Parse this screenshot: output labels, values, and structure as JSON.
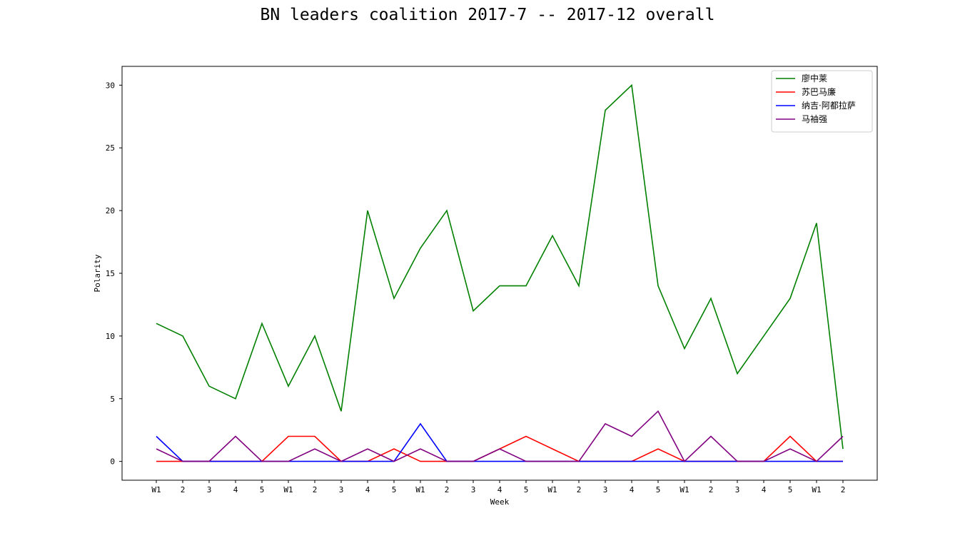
{
  "chart_data": {
    "type": "line",
    "title": "BN leaders coalition 2017-7 -- 2017-12 overall",
    "xlabel": "Week",
    "ylabel": "Polarity",
    "ylim": [
      -1.5,
      31.5
    ],
    "yticks": [
      0,
      5,
      10,
      15,
      20,
      25,
      30
    ],
    "grid": false,
    "legend_position": "top-right",
    "categories": [
      "W1",
      "2",
      "3",
      "4",
      "5",
      "W1",
      "2",
      "3",
      "4",
      "5",
      "W1",
      "2",
      "3",
      "4",
      "5",
      "W1",
      "2",
      "3",
      "4",
      "5",
      "W1",
      "2",
      "3",
      "4",
      "5",
      "W1",
      "2"
    ],
    "series": [
      {
        "name": "廖中莱",
        "color": "#008000",
        "values": [
          11,
          10,
          6,
          5,
          11,
          6,
          10,
          4,
          20,
          13,
          17,
          20,
          12,
          14,
          14,
          18,
          14,
          28,
          30,
          14,
          9,
          13,
          7,
          10,
          13,
          19,
          1
        ]
      },
      {
        "name": "苏巴马廉",
        "color": "#ff0000",
        "values": [
          0,
          0,
          0,
          0,
          0,
          2,
          2,
          0,
          0,
          1,
          0,
          0,
          0,
          1,
          2,
          1,
          0,
          0,
          0,
          1,
          0,
          0,
          0,
          0,
          2,
          0,
          0
        ]
      },
      {
        "name": "纳吉·阿都拉萨",
        "color": "#0000ff",
        "values": [
          2,
          0,
          0,
          0,
          0,
          0,
          0,
          0,
          0,
          0,
          3,
          0,
          0,
          0,
          0,
          0,
          0,
          0,
          0,
          0,
          0,
          0,
          0,
          0,
          0,
          0,
          0
        ]
      },
      {
        "name": "马袖强",
        "color": "#800080",
        "values": [
          1,
          0,
          0,
          2,
          0,
          0,
          1,
          0,
          1,
          0,
          1,
          0,
          0,
          1,
          0,
          0,
          0,
          3,
          2,
          4,
          0,
          2,
          0,
          0,
          1,
          0,
          2
        ]
      }
    ]
  }
}
